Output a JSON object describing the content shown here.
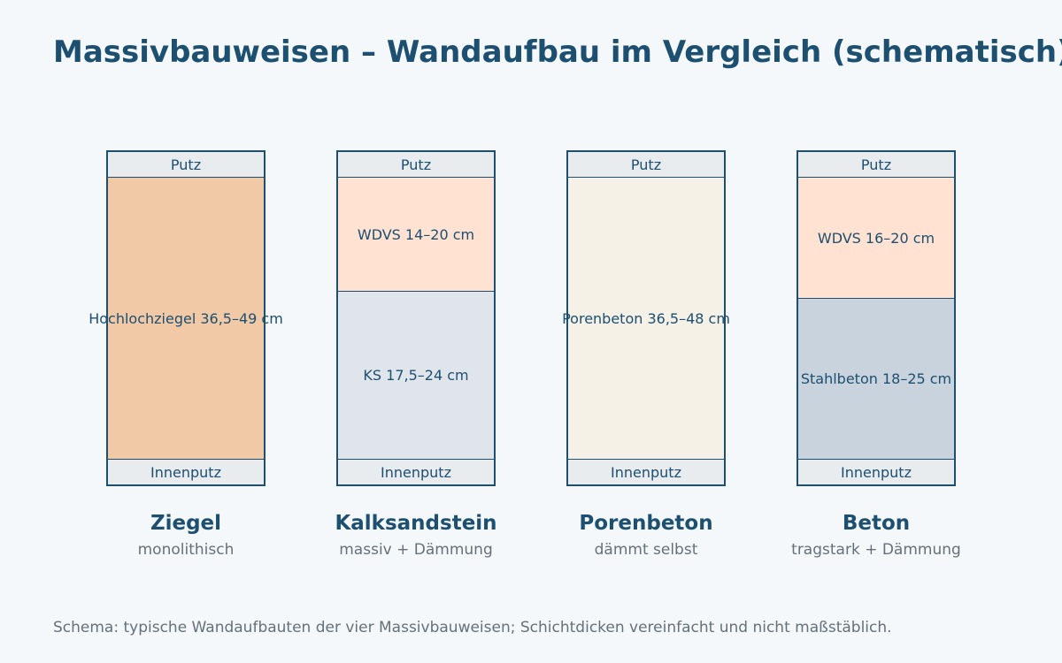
{
  "title": "Massivbauweisen – Wandaufbau im Vergleich (schematisch)",
  "footnote": "Schema: typische Wandaufbauten der vier Massivbauweisen; Schichtdicken vereinfacht und nicht maßstäblich.",
  "colors": {
    "outline": "#1c4f70",
    "putz": "#e8ecef",
    "ziegel": "#f1c9a7",
    "wdvs": "#ffe2d2",
    "kalksandstein": "#e0e5ec",
    "porenbeton": "#f5f1e7",
    "stahlbeton": "#c9d3dd"
  },
  "walls": [
    {
      "name": "Ziegel",
      "description": "monolithisch",
      "layers": {
        "outer_plaster": "Putz",
        "core": "Hochlochziegel 36,5–49 cm",
        "inner_plaster": "Innenputz"
      }
    },
    {
      "name": "Kalksandstein",
      "description": "massiv + Dämmung",
      "layers": {
        "outer_plaster": "Putz",
        "insulation": "WDVS 14–20 cm",
        "core": "KS 17,5–24 cm",
        "inner_plaster": "Innenputz"
      }
    },
    {
      "name": "Porenbeton",
      "description": "dämmt selbst",
      "layers": {
        "outer_plaster": "Putz",
        "core": "Porenbeton 36,5–48 cm",
        "inner_plaster": "Innenputz"
      }
    },
    {
      "name": "Beton",
      "description": "tragstark + Dämmung",
      "layers": {
        "outer_plaster": "Putz",
        "insulation": "WDVS 16–20 cm",
        "core": "Stahlbeton 18–25 cm",
        "inner_plaster": "Innenputz"
      }
    }
  ]
}
